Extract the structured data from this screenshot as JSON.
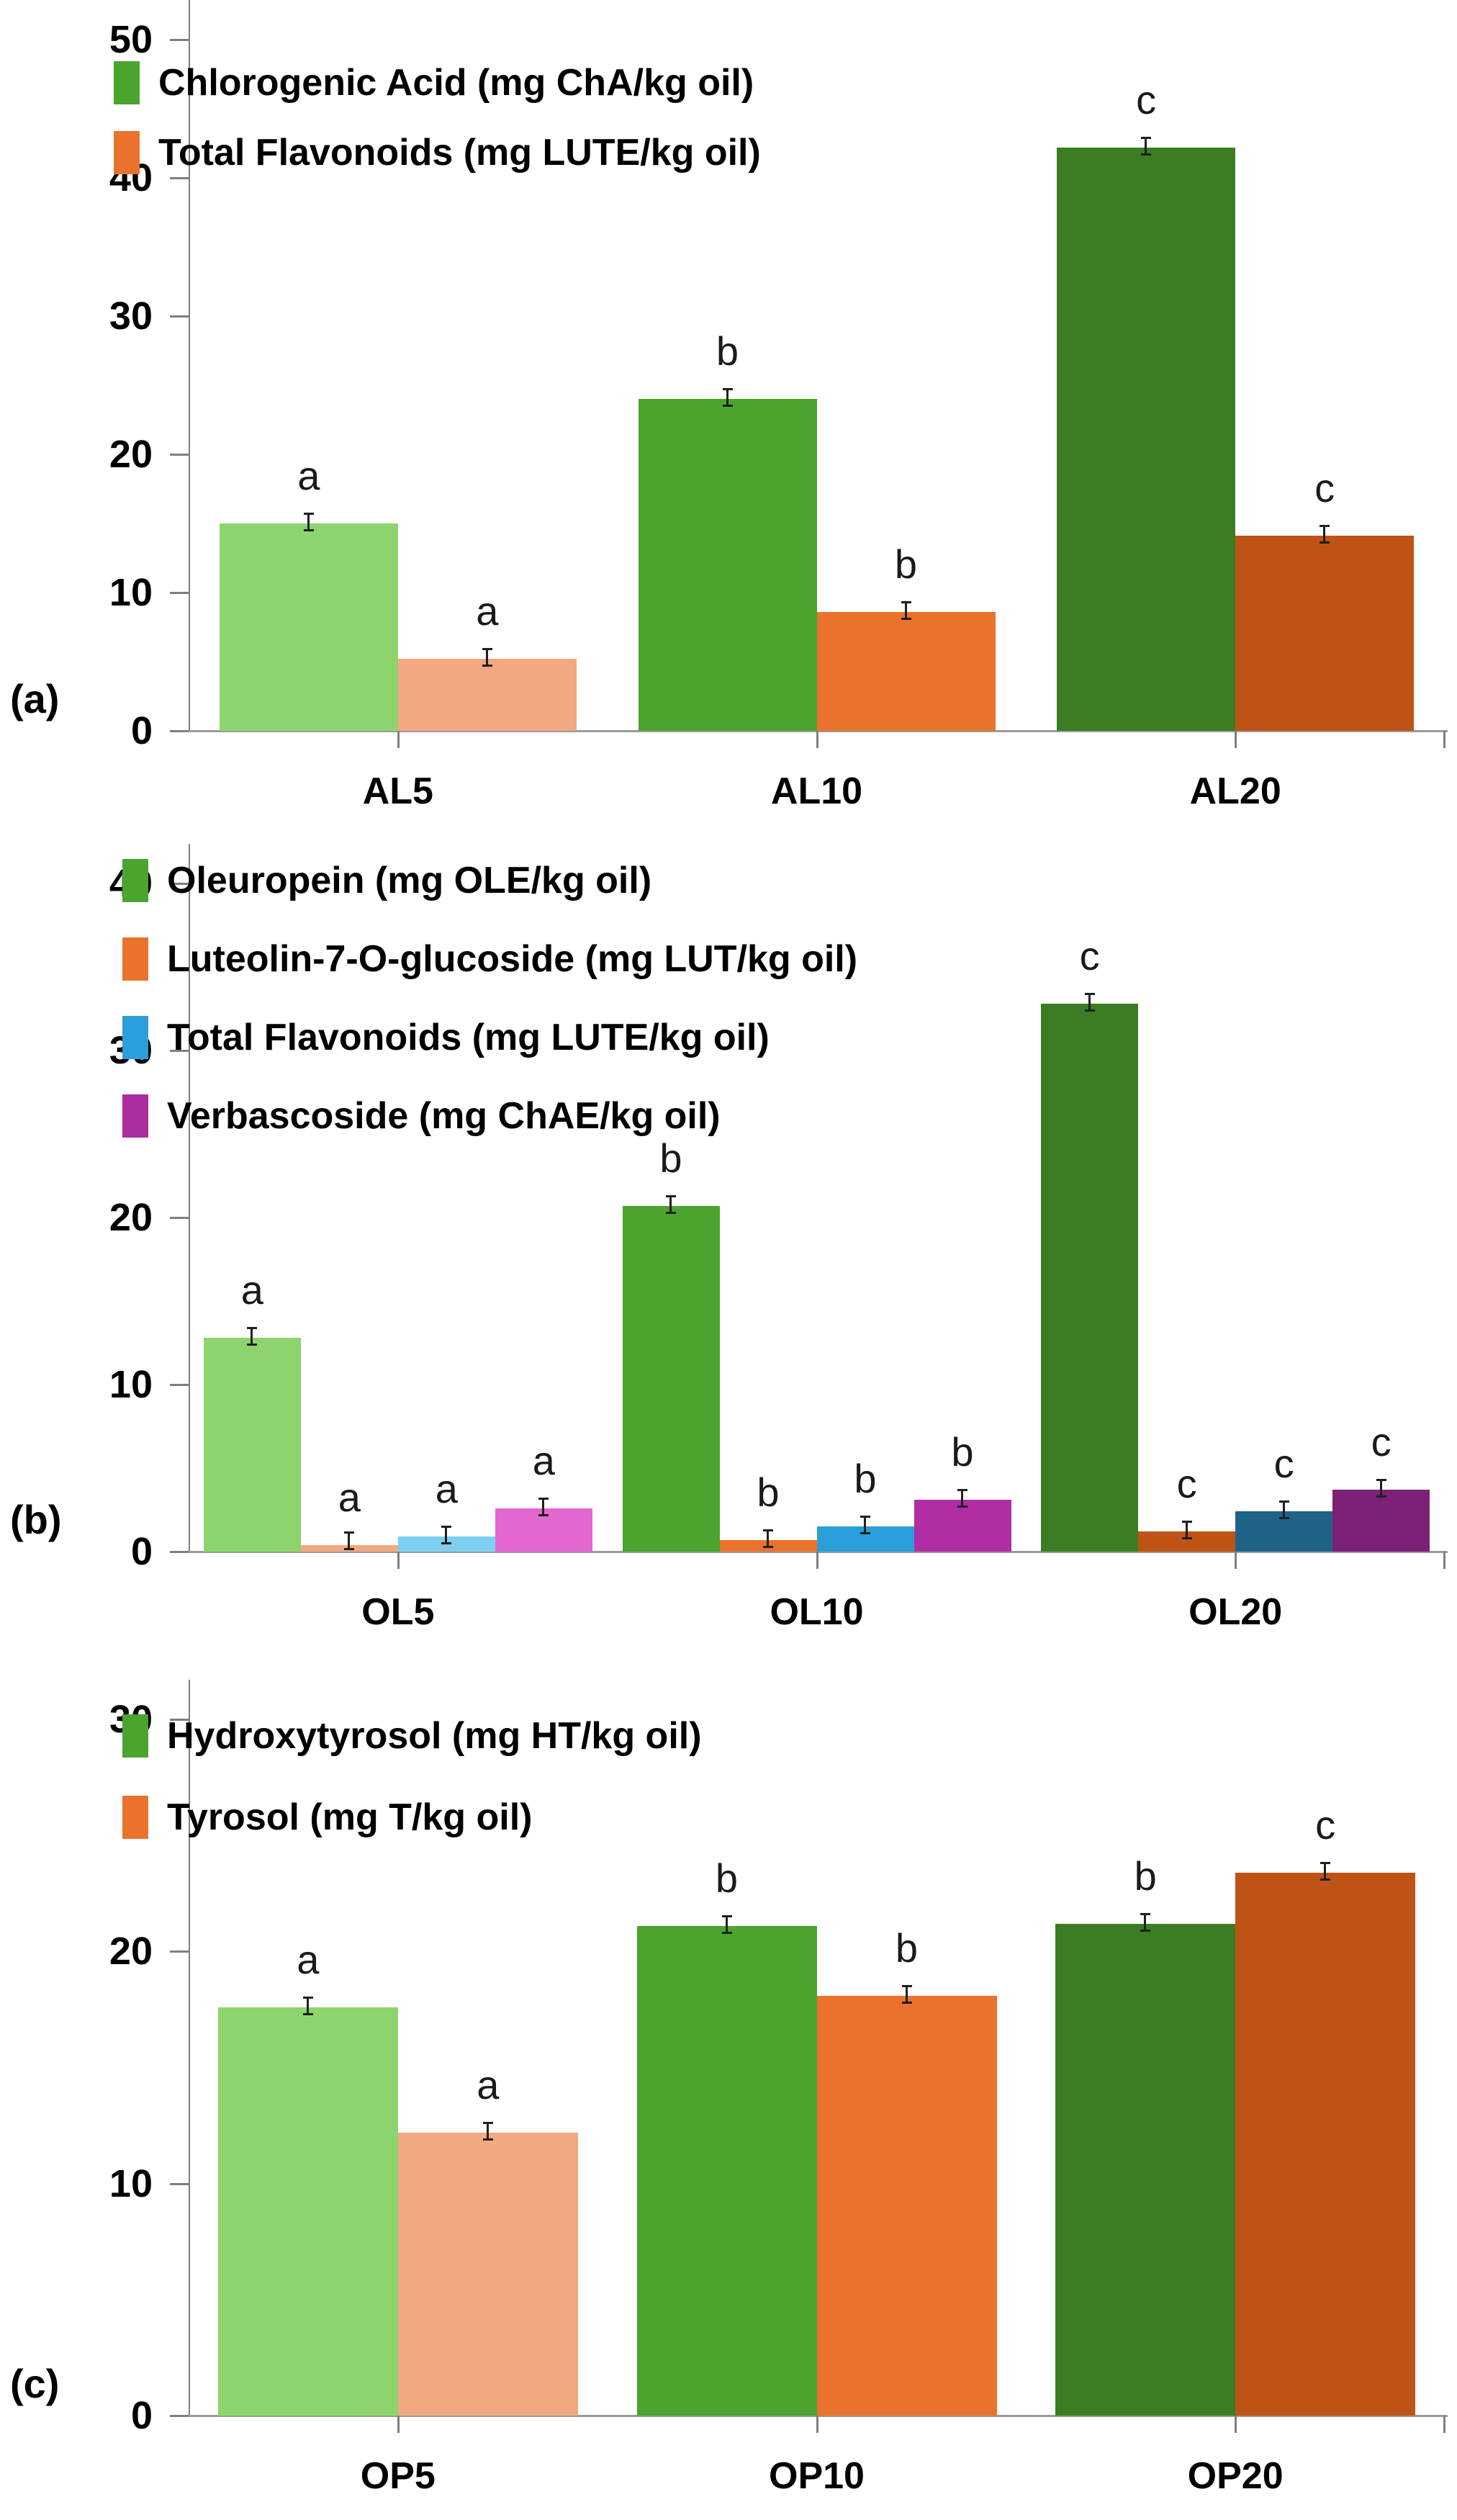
{
  "chart_data": [
    {
      "type": "bar",
      "panel_label": "(a)",
      "categories": [
        "AL5",
        "AL10",
        "AL20"
      ],
      "y_ticks": [
        0,
        10,
        20,
        30,
        40,
        50
      ],
      "ylim": [
        0,
        50
      ],
      "grid": false,
      "legend_position": "top-left-inside",
      "error_bars": "small SD caps at bar tops",
      "legend": [
        {
          "label": "Chlorogenic Acid (mg ChA/kg oil)",
          "color": "#4BA42E"
        },
        {
          "label": "Total Flavonoids (mg LUTE/kg oil)",
          "color": "#E9732D"
        }
      ],
      "series": [
        {
          "name": "Chlorogenic Acid (mg ChA/kg oil)",
          "values": [
            15.0,
            24.0,
            42.2
          ],
          "sig_letters": [
            "a",
            "b",
            "c"
          ],
          "shades": [
            "#8ED46E",
            "#4BA42E",
            "#3A7D22"
          ]
        },
        {
          "name": "Total Flavonoids (mg LUTE/kg oil)",
          "values": [
            5.2,
            8.6,
            14.1
          ],
          "sig_letters": [
            "a",
            "b",
            "c"
          ],
          "shades": [
            "#F2A981",
            "#E9732D",
            "#BF5316"
          ]
        }
      ]
    },
    {
      "type": "bar",
      "panel_label": "(b)",
      "categories": [
        "OL5",
        "OL10",
        "OL20"
      ],
      "y_ticks": [
        0,
        10,
        20,
        30,
        40
      ],
      "ylim": [
        0,
        40
      ],
      "grid": false,
      "legend_position": "top-left-inside",
      "error_bars": "small SD caps at bar tops",
      "legend": [
        {
          "label": "Oleuropein (mg OLE/kg oil)",
          "color": "#4BA42E"
        },
        {
          "label": "Luteolin-7-O-glucoside (mg LUT/kg oil)",
          "color": "#E9732D"
        },
        {
          "label": "Total Flavonoids (mg LUTE/kg oil)",
          "color": "#2B9FD9"
        },
        {
          "label": "Verbascoside (mg ChAE/kg oil)",
          "color": "#AB2BA0"
        }
      ],
      "series": [
        {
          "name": "Oleuropein (mg OLE/kg oil)",
          "values": [
            12.8,
            20.7,
            32.8
          ],
          "sig_letters": [
            "a",
            "b",
            "c"
          ],
          "shades": [
            "#8ED46E",
            "#4BA42E",
            "#3A7D22"
          ]
        },
        {
          "name": "Luteolin-7-O-glucoside (mg LUT/kg oil)",
          "values": [
            0.4,
            0.7,
            1.2
          ],
          "sig_letters": [
            "a",
            "b",
            "c"
          ],
          "shades": [
            "#F2A981",
            "#E9732D",
            "#BF5316"
          ]
        },
        {
          "name": "Total Flavonoids (mg LUTE/kg oil)",
          "values": [
            0.9,
            1.5,
            2.4
          ],
          "sig_letters": [
            "a",
            "b",
            "c"
          ],
          "shades": [
            "#7ED0F2",
            "#2B9FD9",
            "#1F6486"
          ]
        },
        {
          "name": "Verbascoside (mg ChAE/kg oil)",
          "values": [
            2.6,
            3.1,
            3.7
          ],
          "sig_letters": [
            "a",
            "b",
            "c"
          ],
          "shades": [
            "#E466D0",
            "#B02DA3",
            "#7C2175"
          ]
        }
      ]
    },
    {
      "type": "bar",
      "panel_label": "(c)",
      "categories": [
        "OP5",
        "OP10",
        "OP20"
      ],
      "y_ticks": [
        0,
        10,
        20,
        30
      ],
      "ylim": [
        0,
        30
      ],
      "grid": false,
      "legend_position": "top-left-inside",
      "error_bars": "small SD caps at bar tops",
      "legend": [
        {
          "label": "Hydroxytyrosol (mg HT/kg oil)",
          "color": "#4BA42E"
        },
        {
          "label": "Tyrosol (mg T/kg oil)",
          "color": "#E9732D"
        }
      ],
      "series": [
        {
          "name": "Hydroxytyrosol (mg HT/kg oil)",
          "values": [
            17.6,
            21.1,
            21.2
          ],
          "sig_letters": [
            "a",
            "b",
            "b"
          ],
          "shades": [
            "#8ED46E",
            "#4BA42E",
            "#3A7D22"
          ]
        },
        {
          "name": "Tyrosol (mg T/kg oil)",
          "values": [
            12.2,
            18.1,
            23.4
          ],
          "sig_letters": [
            "a",
            "b",
            "c"
          ],
          "shades": [
            "#F2A981",
            "#E9732D",
            "#BF5316"
          ]
        }
      ]
    }
  ]
}
